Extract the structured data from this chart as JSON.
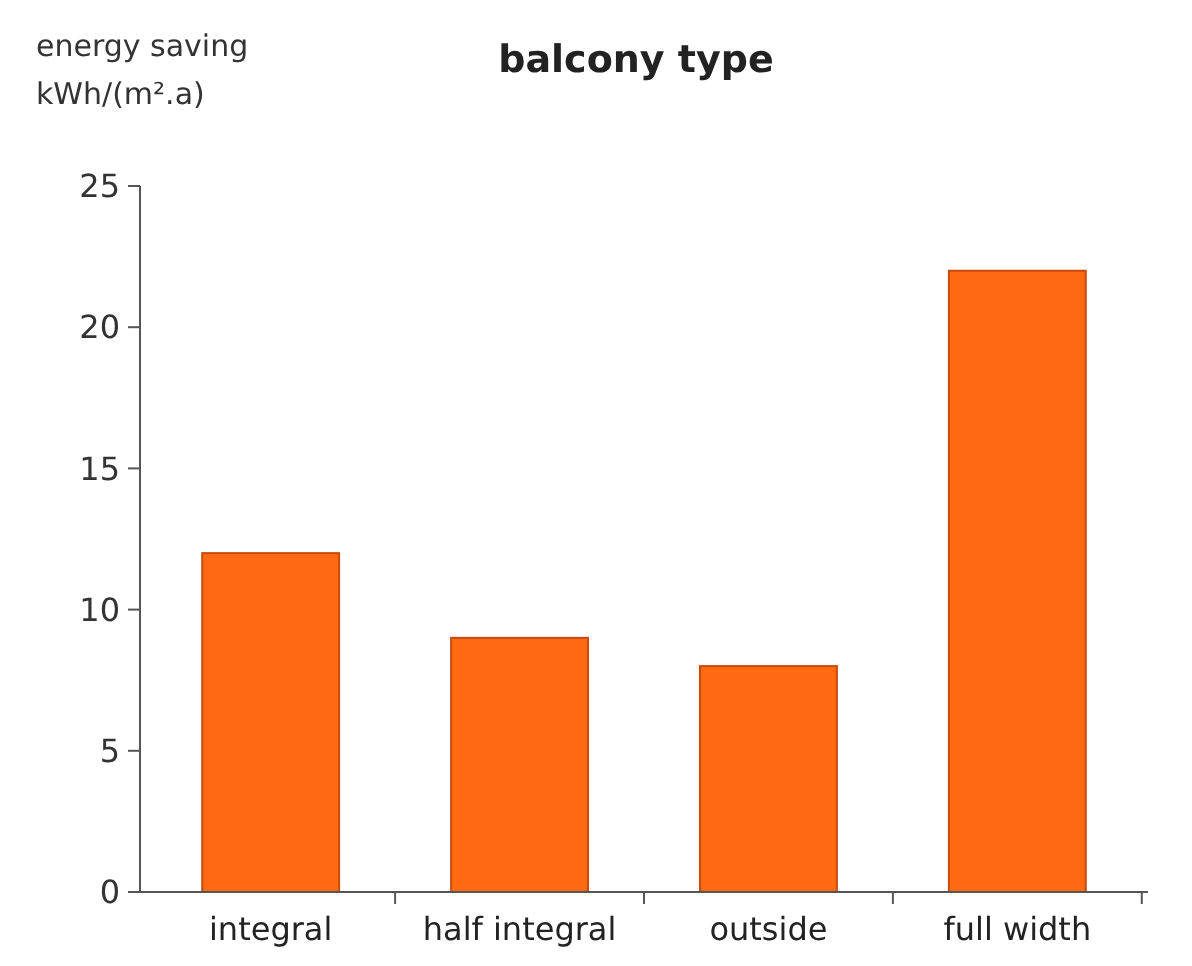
{
  "chart_data": {
    "type": "bar",
    "title": "balcony type",
    "ylabel": "energy saving\nkWh/(m².a)",
    "categories": [
      "integral",
      "half integral",
      "outside",
      "full width"
    ],
    "values": [
      12,
      9,
      8,
      22
    ],
    "color": "#ff6a13",
    "ylim": [
      0,
      25
    ],
    "yticks": [
      0,
      5,
      10,
      15,
      20,
      25
    ],
    "grid": false
  }
}
